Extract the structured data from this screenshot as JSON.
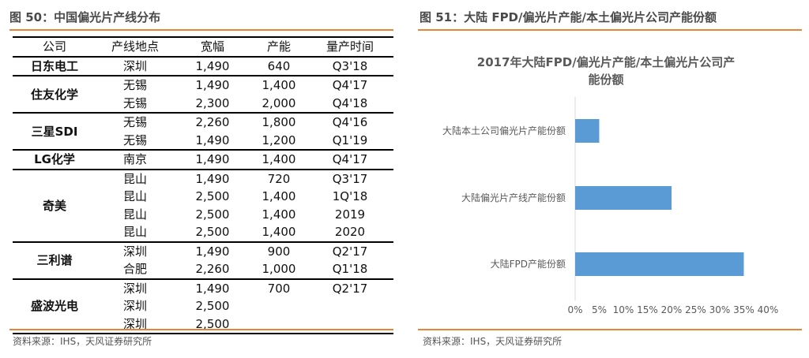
{
  "left": {
    "title": "图 50：中国偏光片产线分布",
    "source": "资料来源：IHS，天风证券研究所",
    "table": {
      "headers": [
        "公司",
        "产线地点",
        "宽幅",
        "产能",
        "量产时间"
      ],
      "groups": [
        {
          "company": "日东电工",
          "rows": [
            [
              "深圳",
              "1,490",
              "640",
              "Q3'18"
            ]
          ]
        },
        {
          "company": "住友化学",
          "rows": [
            [
              "无锡",
              "1,490",
              "1,400",
              "Q4'17"
            ],
            [
              "无锡",
              "2,300",
              "2,000",
              "Q4'18"
            ]
          ]
        },
        {
          "company": "三星SDI",
          "rows": [
            [
              "无锡",
              "2,260",
              "1,800",
              "Q4'16"
            ],
            [
              "无锡",
              "1,490",
              "1,200",
              "Q1'19"
            ]
          ]
        },
        {
          "company": "LG化学",
          "rows": [
            [
              "南京",
              "1,490",
              "1,400",
              "Q4'17"
            ]
          ]
        },
        {
          "company": "奇美",
          "rows": [
            [
              "昆山",
              "1,490",
              "720",
              "Q3'17"
            ],
            [
              "昆山",
              "2,500",
              "1,400",
              "1Q'18"
            ],
            [
              "昆山",
              "2,500",
              "1,400",
              "2019"
            ],
            [
              "昆山",
              "2,500",
              "1,400",
              "2020"
            ]
          ]
        },
        {
          "company": "三利谱",
          "rows": [
            [
              "深圳",
              "1,490",
              "900",
              "Q2'17"
            ],
            [
              "合肥",
              "2,260",
              "1,000",
              "Q1'18"
            ]
          ]
        },
        {
          "company": "盛波光电",
          "rows": [
            [
              "深圳",
              "1,490",
              "700",
              "Q2'17"
            ],
            [
              "深圳",
              "2,500",
              "",
              ""
            ],
            [
              "深圳",
              "2,500",
              "",
              ""
            ]
          ]
        }
      ]
    }
  },
  "right": {
    "title": "图 51：大陆 FPD/偏光片产能/本土偏光片公司产能份额",
    "source": "资料来源：IHS，天风证券研究所"
  },
  "chart_data": {
    "type": "bar",
    "orientation": "horizontal",
    "title_lines": [
      "2017年大陆FPD/偏光片产能/本土偏光片公司产",
      "能份额"
    ],
    "categories": [
      "大陆本土公司偏光片产能份额",
      "大陆偏光片产线产能份额",
      "大陆FPD产能份额"
    ],
    "values": [
      5,
      20,
      35
    ],
    "value_unit": "%",
    "xlim": [
      0,
      40
    ],
    "xticks": [
      "0%",
      "5%",
      "10%",
      "15%",
      "20%",
      "25%",
      "30%",
      "35%",
      "40%"
    ],
    "grid": false,
    "bar_color": "#5b9bd5",
    "axis_color": "#d9d9d9"
  },
  "colors": {
    "accent_rule": "#e8833a"
  }
}
